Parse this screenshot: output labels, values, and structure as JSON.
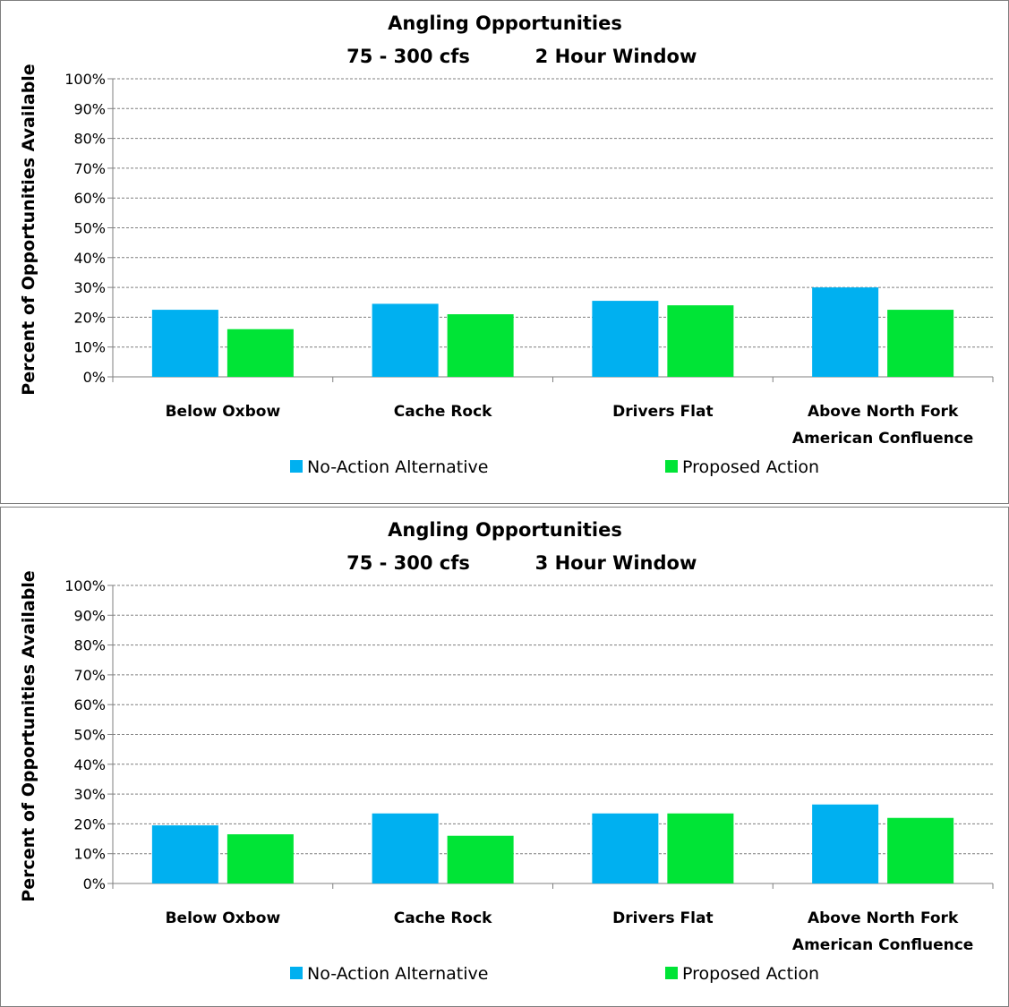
{
  "colors": {
    "no_action": "#00b0f0",
    "proposed": "#00e436",
    "grid": "#7f7f7f",
    "axis": "#7f7f7f"
  },
  "chart_data": [
    {
      "type": "bar",
      "title": "Angling Opportunities",
      "subtitle_left": "75 - 300 cfs",
      "subtitle_right": "2 Hour Window",
      "ylabel": "Percent of Opportunities Available",
      "xlabel": "",
      "ylim": [
        0,
        100
      ],
      "yticks": [
        "0%",
        "10%",
        "20%",
        "30%",
        "40%",
        "50%",
        "60%",
        "70%",
        "80%",
        "90%",
        "100%"
      ],
      "grid": true,
      "legend_position": "bottom",
      "categories": [
        [
          "Below Oxbow"
        ],
        [
          "Cache Rock"
        ],
        [
          "Drivers Flat"
        ],
        [
          "Above North Fork",
          "American Confluence"
        ]
      ],
      "series": [
        {
          "name": "No-Action Alternative",
          "color": "#00b0f0",
          "values": [
            22.5,
            24.5,
            25.5,
            30
          ]
        },
        {
          "name": "Proposed Action",
          "color": "#00e436",
          "values": [
            16,
            21,
            24,
            22.5
          ]
        }
      ]
    },
    {
      "type": "bar",
      "title": "Angling Opportunities",
      "subtitle_left": "75 - 300 cfs",
      "subtitle_right": "3 Hour Window",
      "ylabel": "Percent of Opportunities Available",
      "xlabel": "",
      "ylim": [
        0,
        100
      ],
      "yticks": [
        "0%",
        "10%",
        "20%",
        "30%",
        "40%",
        "50%",
        "60%",
        "70%",
        "80%",
        "90%",
        "100%"
      ],
      "grid": true,
      "legend_position": "bottom",
      "categories": [
        [
          "Below Oxbow"
        ],
        [
          "Cache Rock"
        ],
        [
          "Drivers Flat"
        ],
        [
          "Above North Fork",
          "American Confluence"
        ]
      ],
      "series": [
        {
          "name": "No-Action Alternative",
          "color": "#00b0f0",
          "values": [
            19.5,
            23.5,
            23.5,
            26.5
          ]
        },
        {
          "name": "Proposed Action",
          "color": "#00e436",
          "values": [
            16.5,
            16,
            23.5,
            22
          ]
        }
      ]
    }
  ]
}
